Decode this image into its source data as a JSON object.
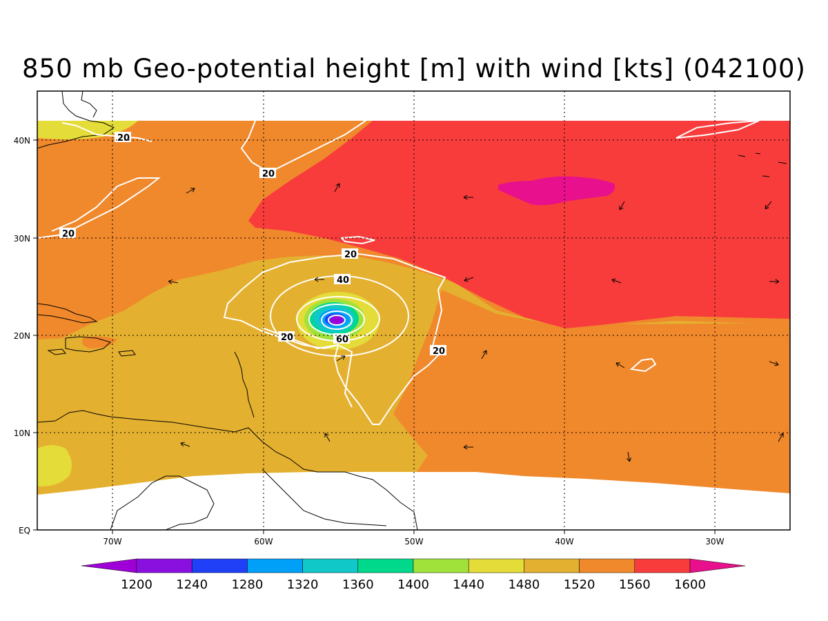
{
  "title": "850 mb Geo-potential height [m] with wind [kts] (042100)",
  "axes": {
    "lat_labels": [
      "40N",
      "30N",
      "20N",
      "10N",
      "EQ"
    ],
    "lon_labels": [
      "70W",
      "60W",
      "50W",
      "40W",
      "30W"
    ]
  },
  "contours": {
    "labels": [
      "20",
      "20",
      "20",
      "20",
      "20",
      "40",
      "60",
      "20"
    ]
  },
  "colorbar": {
    "labels": [
      "1200",
      "1240",
      "1280",
      "1320",
      "1360",
      "1400",
      "1440",
      "1480",
      "1520",
      "1560",
      "1600"
    ],
    "colors": [
      "#a000d8",
      "#8a10e0",
      "#2040f8",
      "#00a0f8",
      "#10c8c8",
      "#00d88c",
      "#a0e23a",
      "#e4dc38",
      "#e4b030",
      "#f0882c",
      "#f83c3c",
      "#e8108c"
    ]
  },
  "colors": {
    "bg_ocean": "#e4b030",
    "orange": "#f0882c",
    "red": "#f83c3c",
    "magenta": "#e8108c",
    "yellow": "#e4dc38",
    "green": "#a0e23a",
    "teal": "#10c8c8",
    "blue": "#00a0f8",
    "violet": "#a000d8"
  }
}
